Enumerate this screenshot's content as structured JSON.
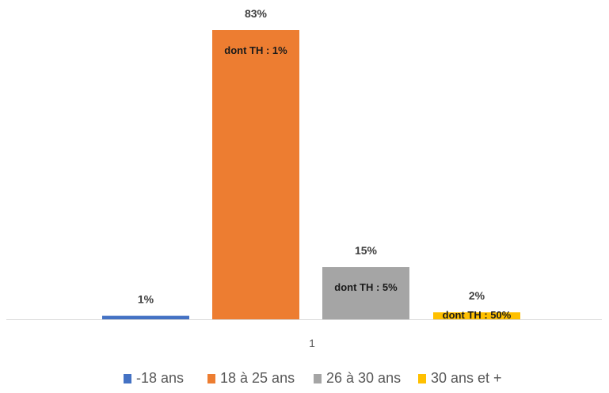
{
  "chart_data": {
    "type": "bar",
    "categories": [
      "1"
    ],
    "series": [
      {
        "name": "-18 ans",
        "values": [
          1
        ],
        "value_label": "1%",
        "note": "",
        "color": "#4472C4"
      },
      {
        "name": "18 à 25 ans",
        "values": [
          83
        ],
        "value_label": "83%",
        "note": "dont TH : 1%",
        "color": "#ED7D31"
      },
      {
        "name": "26 à 30 ans",
        "values": [
          15
        ],
        "value_label": "15%",
        "note": "dont TH : 5%",
        "color": "#A5A5A5"
      },
      {
        "name": "30 ans et +",
        "values": [
          2
        ],
        "value_label": "2%",
        "note": "dont TH : 50%",
        "color": "#FFC000"
      }
    ],
    "ylim": [
      0,
      83
    ],
    "grid": false,
    "legend_position": "bottom",
    "axis_color": "#D9D9D9"
  }
}
